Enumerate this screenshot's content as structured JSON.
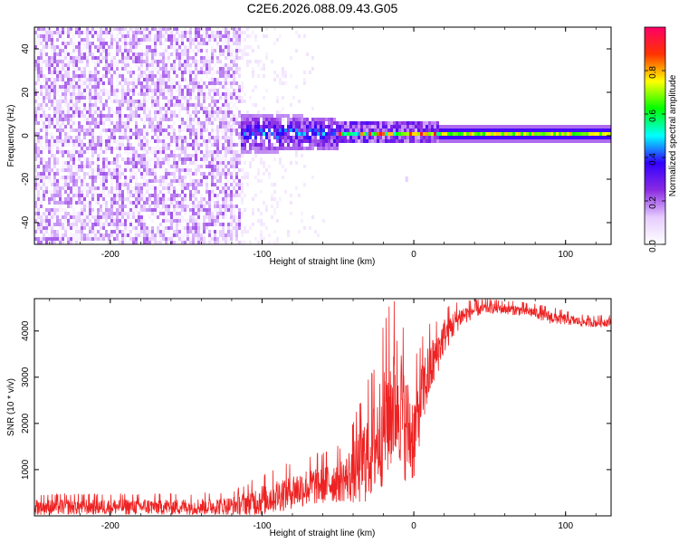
{
  "figure_title": "C2E6.2026.088.09.43.G05",
  "chart_data": [
    {
      "type": "heatmap",
      "xlabel": "Height of straight line (km)",
      "ylabel": "Frequency (Hz)",
      "xlim": [
        -250,
        130
      ],
      "ylim": [
        -50,
        50
      ],
      "x_ticks": [
        -200,
        -100,
        0,
        100
      ],
      "y_ticks": [
        -40,
        -20,
        0,
        20,
        40
      ],
      "colorbar": {
        "label": "Normalized spectral amplitude",
        "range": [
          0.0,
          1.0
        ],
        "ticks": [
          "0.0",
          "0.2",
          "0.4",
          "0.6",
          "0.8"
        ],
        "tick_values": [
          0.0,
          0.2,
          0.4,
          0.6,
          0.8
        ],
        "colormap": [
          "#ffffff",
          "#e6ccff",
          "#8a2be2",
          "#3300ff",
          "#00ffff",
          "#00ff00",
          "#ffff00",
          "#ff3300",
          "#ff0066"
        ]
      },
      "regions": [
        {
          "name": "noise",
          "x_range": [
            -250,
            -115
          ],
          "freq_range": [
            -50,
            50
          ],
          "amplitude": 0.05
        },
        {
          "name": "noise-fade",
          "x_range": [
            -115,
            -50
          ],
          "freq_range": [
            -50,
            50
          ],
          "amplitude": 0.02
        },
        {
          "name": "signal-spread",
          "x_range": [
            -115,
            -50
          ],
          "freq_range": [
            -8,
            10
          ],
          "amplitude": 0.2
        },
        {
          "name": "signal-narrowing",
          "x_range": [
            -50,
            15
          ],
          "freq_range": [
            -3,
            4
          ],
          "amplitude": 0.5
        },
        {
          "name": "signal-tone",
          "x_range": [
            15,
            130
          ],
          "freq_range": [
            -2,
            4
          ],
          "amplitude": 0.75
        }
      ],
      "signal_center_hz": 1
    },
    {
      "type": "line",
      "xlabel": "Height of straight line (km)",
      "ylabel": "SNR (10 * v/v)",
      "xlim": [
        -250,
        130
      ],
      "ylim": [
        0,
        4700
      ],
      "x_ticks": [
        -200,
        -100,
        0,
        100
      ],
      "y_ticks": [
        1000,
        2000,
        3000,
        4000
      ],
      "color": "#ee2222",
      "series": [
        {
          "name": "SNR",
          "x": [
            -250,
            -200,
            -150,
            -120,
            -100,
            -80,
            -60,
            -45,
            -35,
            -25,
            -15,
            -10,
            -5,
            0,
            5,
            10,
            15,
            20,
            30,
            40,
            50,
            60,
            70,
            80,
            90,
            100,
            110,
            120,
            130
          ],
          "y": [
            200,
            200,
            200,
            220,
            350,
            550,
            700,
            800,
            1100,
            1600,
            2400,
            2600,
            1900,
            1700,
            2600,
            3100,
            3500,
            3900,
            4300,
            4450,
            4500,
            4480,
            4450,
            4400,
            4300,
            4250,
            4200,
            4180,
            4200
          ],
          "noise_amplitude": [
            180,
            180,
            180,
            200,
            350,
            400,
            450,
            500,
            900,
            1200,
            1500,
            1500,
            1200,
            1000,
            800,
            700,
            500,
            400,
            250,
            150,
            120,
            120,
            120,
            120,
            150,
            120,
            100,
            100,
            100
          ]
        }
      ]
    }
  ]
}
